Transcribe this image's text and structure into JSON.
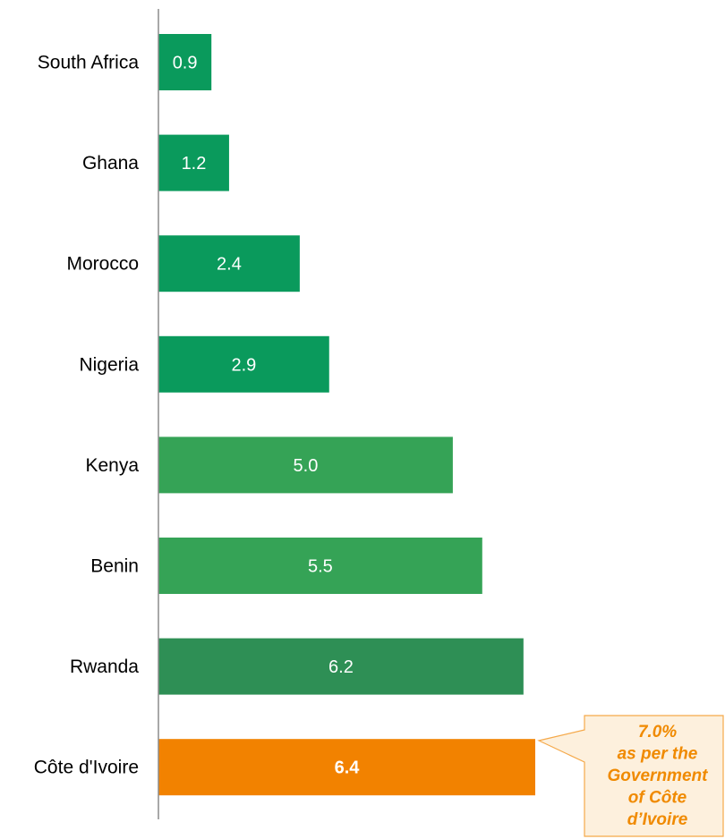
{
  "chart_data": {
    "type": "bar",
    "orientation": "horizontal",
    "categories": [
      "South Africa",
      "Ghana",
      "Morocco",
      "Nigeria",
      "Kenya",
      "Benin",
      "Rwanda",
      "Côte d'Ivoire"
    ],
    "values": [
      0.9,
      1.2,
      2.4,
      2.9,
      5.0,
      5.5,
      6.2,
      6.4
    ],
    "value_labels": [
      "0.9",
      "1.2",
      "2.4",
      "2.9",
      "5.0",
      "5.5",
      "6.2",
      "6.4"
    ],
    "bar_colors": [
      "#0a9a5c",
      "#0a9a5c",
      "#0a9a5c",
      "#0a9a5c",
      "#35a356",
      "#35a356",
      "#2e8f55",
      "#f28200"
    ],
    "highlight_index": 7,
    "xlim": [
      0,
      6.4
    ],
    "title": "",
    "xlabel": "",
    "ylabel": "",
    "grid": false,
    "legend": "none",
    "annotation": {
      "lines": [
        "7.0%",
        "as per the",
        "Government",
        "of Côte",
        "d’Ivoire"
      ],
      "target_category": "Côte d'Ivoire",
      "text_color": "#f08a00",
      "border_color": "#f5a94a",
      "fill_color": "#fdf0dd"
    }
  }
}
